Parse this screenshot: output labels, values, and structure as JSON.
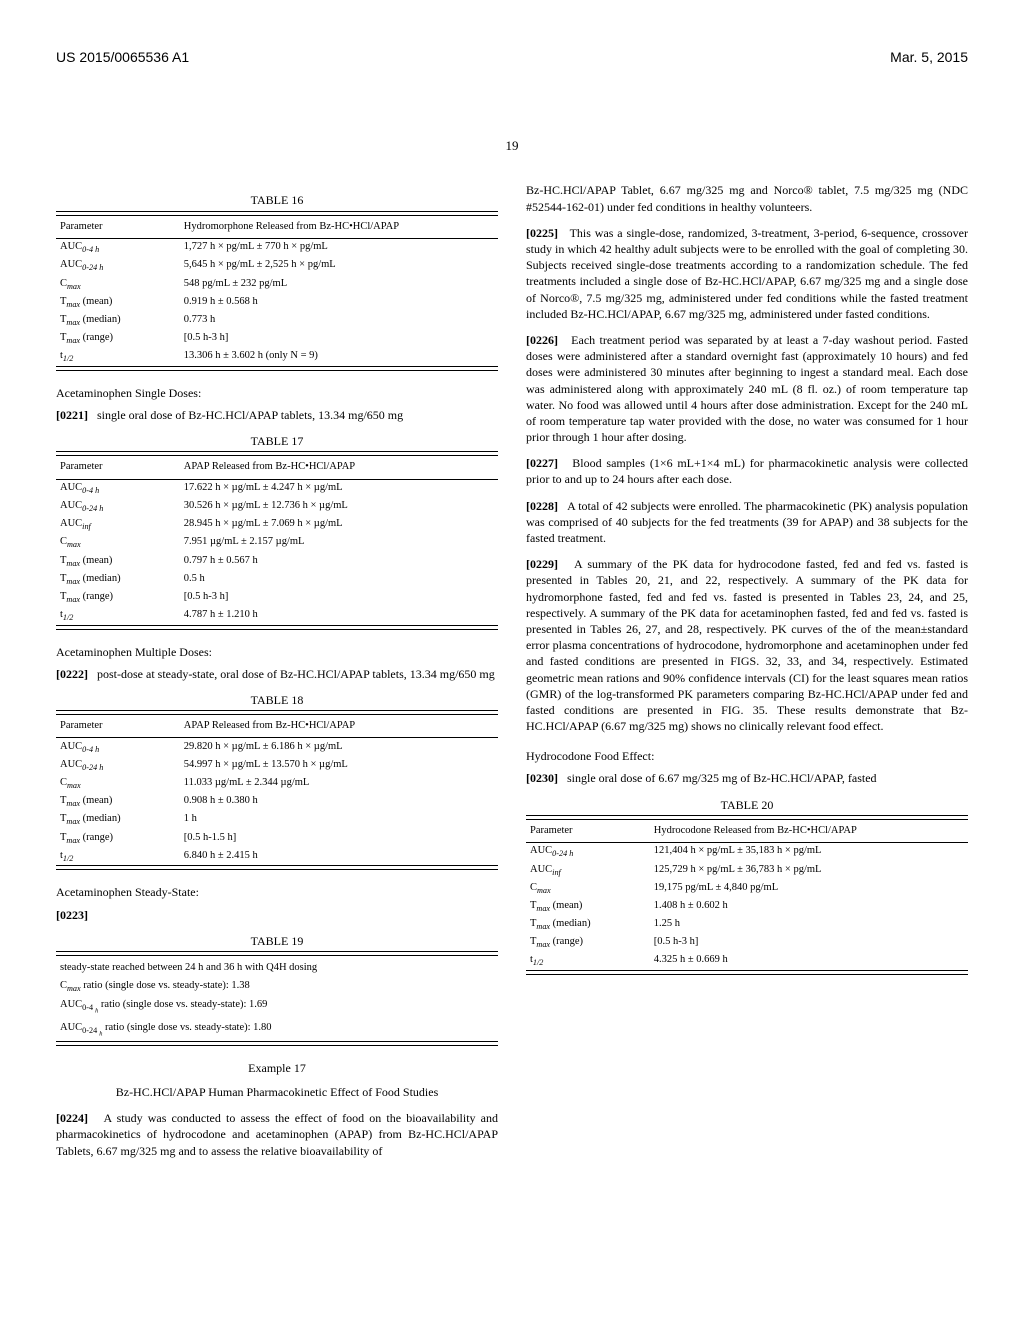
{
  "header": {
    "pub_number": "US 2015/0065536 A1",
    "pub_date": "Mar. 5, 2015",
    "page_number": "19"
  },
  "left": {
    "table16": {
      "caption": "TABLE 16",
      "header_left": "Parameter",
      "header_right": "Hydromorphone Released from Bz-HC•HCl/APAP",
      "rows": [
        {
          "p_base": "AUC",
          "p_sub": "0-4 h",
          "v": "1,727 h × pg/mL ± 770 h × pg/mL"
        },
        {
          "p_base": "AUC",
          "p_sub": "0-24 h",
          "v": "5,645 h × pg/mL ± 2,525 h × pg/mL"
        },
        {
          "p_base": "C",
          "p_sub": "max",
          "v": "548 pg/mL ± 232 pg/mL"
        },
        {
          "p_base": "T",
          "p_sub": "max",
          "p_suffix": " (mean)",
          "v": "0.919 h ± 0.568 h"
        },
        {
          "p_base": "T",
          "p_sub": "max",
          "p_suffix": " (median)",
          "v": "0.773 h"
        },
        {
          "p_base": "T",
          "p_sub": "max",
          "p_suffix": " (range)",
          "v": "[0.5 h-3 h]"
        },
        {
          "p_base": "t",
          "p_sub": "1/2",
          "v": "13.306 h ± 3.602 h (only N = 9)"
        }
      ]
    },
    "acet_single_label": "Acetaminophen Single Doses:",
    "para0221_num": "[0221]",
    "para0221": "single oral dose of Bz-HC.HCl/APAP tablets, 13.34 mg/650 mg",
    "table17": {
      "caption": "TABLE 17",
      "header_left": "Parameter",
      "header_right": "APAP Released from Bz-HC•HCl/APAP",
      "rows": [
        {
          "p_base": "AUC",
          "p_sub": "0-4 h",
          "v": "17.622 h × µg/mL ± 4.247 h × µg/mL"
        },
        {
          "p_base": "AUC",
          "p_sub": "0-24 h",
          "v": "30.526 h × µg/mL ± 12.736 h × µg/mL"
        },
        {
          "p_base": "AUC",
          "p_sub": "inf",
          "v": "28.945 h × µg/mL ± 7.069 h × µg/mL"
        },
        {
          "p_base": "C",
          "p_sub": "max",
          "v": "7.951 µg/mL ± 2.157 µg/mL"
        },
        {
          "p_base": "T",
          "p_sub": "max",
          "p_suffix": " (mean)",
          "v": "0.797 h ± 0.567 h"
        },
        {
          "p_base": "T",
          "p_sub": "max",
          "p_suffix": " (median)",
          "v": "0.5 h"
        },
        {
          "p_base": "T",
          "p_sub": "max",
          "p_suffix": " (range)",
          "v": "[0.5 h-3 h]"
        },
        {
          "p_base": "t",
          "p_sub": "1/2",
          "v": "4.787 h ± 1.210 h"
        }
      ]
    },
    "acet_multi_label": "Acetaminophen Multiple Doses:",
    "para0222_num": "[0222]",
    "para0222": "post-dose at steady-state, oral dose of Bz-HC.HCl/APAP tablets, 13.34 mg/650 mg",
    "table18": {
      "caption": "TABLE 18",
      "header_left": "Parameter",
      "header_right": "APAP Released from Bz-HC•HCl/APAP",
      "rows": [
        {
          "p_base": "AUC",
          "p_sub": "0-4 h",
          "v": "29.820 h × µg/mL ± 6.186 h × µg/mL"
        },
        {
          "p_base": "AUC",
          "p_sub": "0-24 h",
          "v": "54.997 h × µg/mL ± 13.570 h × µg/mL"
        },
        {
          "p_base": "C",
          "p_sub": "max",
          "v": "11.033 µg/mL ± 2.344 µg/mL"
        },
        {
          "p_base": "T",
          "p_sub": "max",
          "p_suffix": " (mean)",
          "v": "0.908 h ± 0.380 h"
        },
        {
          "p_base": "T",
          "p_sub": "max",
          "p_suffix": " (median)",
          "v": "1 h"
        },
        {
          "p_base": "T",
          "p_sub": "max",
          "p_suffix": " (range)",
          "v": "[0.5 h-1.5 h]"
        },
        {
          "p_base": "t",
          "p_sub": "1/2",
          "v": "6.840 h ± 2.415 h"
        }
      ]
    },
    "acet_ss_label": "Acetaminophen Steady-State:",
    "para0223_num": "[0223]",
    "table19": {
      "caption": "TABLE 19",
      "lines": [
        "steady-state reached between 24 h and 36 h with Q4H dosing",
        "C<span class='sub'>max</span> ratio (single dose vs. steady-state): 1.38",
        "AUC<span class='subn'>0-4 <span class='sub'>h</span></span> ratio (single dose vs. steady-state): 1.69",
        "AUC<span class='subn'>0-24 <span class='sub'>h</span></span> ratio (single dose vs. steady-state): 1.80"
      ]
    },
    "example_heading": "Example 17",
    "example_sub": "Bz-HC.HCl/APAP Human Pharmacokinetic Effect of Food Studies",
    "para0224_num": "[0224]",
    "para0224": "A study was conducted to assess the effect of food on the bioavailability and pharmacokinetics of hydrocodone and acetaminophen (APAP) from Bz-HC.HCl/APAP Tablets, 6.67 mg/325 mg and to assess the relative bioavailability of"
  },
  "right": {
    "intro": "Bz-HC.HCl/APAP Tablet, 6.67 mg/325 mg and Norco® tablet, 7.5 mg/325 mg (NDC #52544-162-01) under fed conditions in healthy volunteers.",
    "para0225_num": "[0225]",
    "para0225": "This was a single-dose, randomized, 3-treatment, 3-period, 6-sequence, crossover study in which 42 healthy adult subjects were to be enrolled with the goal of completing 30. Subjects received single-dose treatments according to a randomization schedule. The fed treatments included a single dose of Bz-HC.HCl/APAP, 6.67 mg/325 mg and a single dose of Norco®, 7.5 mg/325 mg, administered under fed conditions while the fasted treatment included Bz-HC.HCl/APAP, 6.67 mg/325 mg, administered under fasted conditions.",
    "para0226_num": "[0226]",
    "para0226": "Each treatment period was separated by at least a 7-day washout period. Fasted doses were administered after a standard overnight fast (approximately 10 hours) and fed doses were administered 30 minutes after beginning to ingest a standard meal. Each dose was administered along with approximately 240 mL (8 fl. oz.) of room temperature tap water. No food was allowed until 4 hours after dose administration. Except for the 240 mL of room temperature tap water provided with the dose, no water was consumed for 1 hour prior through 1 hour after dosing.",
    "para0227_num": "[0227]",
    "para0227": "Blood samples (1×6 mL+1×4 mL) for pharmacokinetic analysis were collected prior to and up to 24 hours after each dose.",
    "para0228_num": "[0228]",
    "para0228": "A total of 42 subjects were enrolled. The pharmacokinetic (PK) analysis population was comprised of 40 subjects for the fed treatments (39 for APAP) and 38 subjects for the fasted treatment.",
    "para0229_num": "[0229]",
    "para0229": "A summary of the PK data for hydrocodone fasted, fed and fed vs. fasted is presented in Tables 20, 21, and 22, respectively. A summary of the PK data for hydromorphone fasted, fed and fed vs. fasted is presented in Tables 23, 24, and 25, respectively. A summary of the PK data for acetaminophen fasted, fed and fed vs. fasted is presented in Tables 26, 27, and 28, respectively. PK curves of the of the mean±standard error plasma concentrations of hydrocodone, hydromorphone and acetaminophen under fed and fasted conditions are presented in FIGS. 32, 33, and 34, respectively. Estimated geometric mean rations and 90% confidence intervals (CI) for the least squares mean ratios (GMR) of the log-transformed PK parameters comparing Bz-HC.HCl/APAP under fed and fasted conditions are presented in FIG. 35. These results demonstrate that Bz-HC.HCl/APAP (6.67 mg/325 mg) shows no clinically relevant food effect.",
    "hc_food_label": "Hydrocodone Food Effect:",
    "para0230_num": "[0230]",
    "para0230": "single oral dose of 6.67 mg/325 mg of Bz-HC.HCl/APAP, fasted",
    "table20": {
      "caption": "TABLE 20",
      "header_left": "Parameter",
      "header_right": "Hydrocodone Released from Bz-HC•HCl/APAP",
      "rows": [
        {
          "p_base": "AUC",
          "p_sub": "0-24 h",
          "v": "121,404 h × pg/mL ± 35,183 h × pg/mL"
        },
        {
          "p_base": "AUC",
          "p_sub": "inf",
          "v": "125,729 h × pg/mL ± 36,783 h × pg/mL"
        },
        {
          "p_base": "C",
          "p_sub": "max",
          "v": "19,175 pg/mL ± 4,840 pg/mL"
        },
        {
          "p_base": "T",
          "p_sub": "max",
          "p_suffix": " (mean)",
          "v": "1.408 h ± 0.602 h"
        },
        {
          "p_base": "T",
          "p_sub": "max",
          "p_suffix": " (median)",
          "v": "1.25 h"
        },
        {
          "p_base": "T",
          "p_sub": "max",
          "p_suffix": " (range)",
          "v": "[0.5 h-3 h]"
        },
        {
          "p_base": "t",
          "p_sub": "1/2",
          "v": "4.325 h ± 0.669 h"
        }
      ]
    }
  }
}
